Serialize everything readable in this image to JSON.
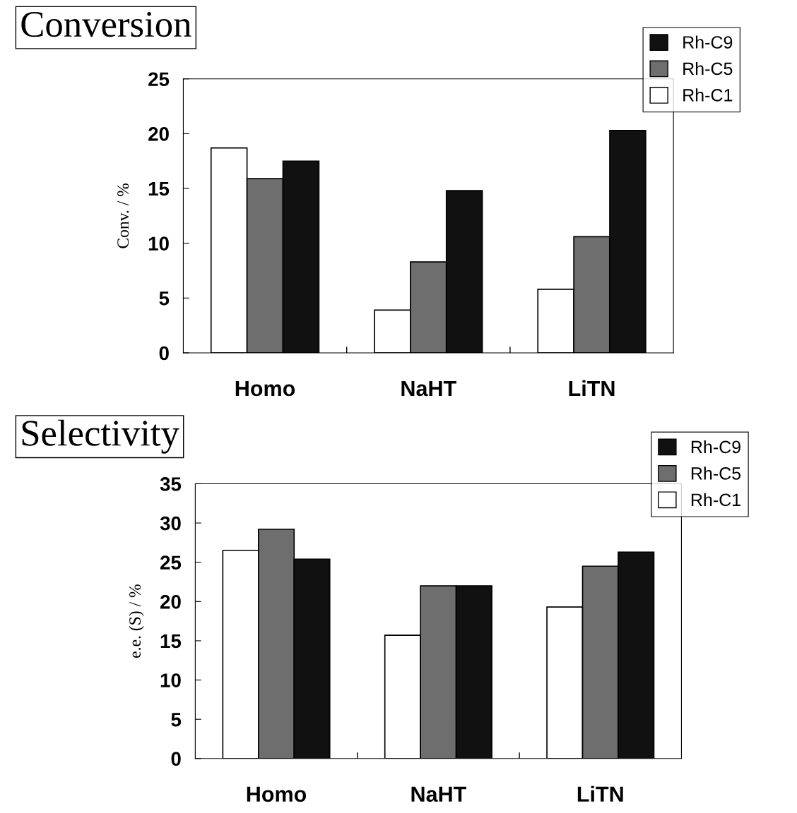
{
  "chart_data": [
    {
      "type": "bar",
      "title": "Conversion",
      "ylabel": "Conv. / %",
      "categories": [
        "Homo",
        "NaHT",
        "LiTN"
      ],
      "series": [
        {
          "name": "Rh-C1",
          "color": "#ffffff",
          "values": [
            18.7,
            3.9,
            5.8
          ]
        },
        {
          "name": "Rh-C5",
          "color": "#6e6e6e",
          "values": [
            15.9,
            8.3,
            10.6
          ]
        },
        {
          "name": "Rh-C9",
          "color": "#111111",
          "values": [
            17.5,
            14.8,
            20.3
          ]
        }
      ],
      "ylim": [
        0,
        25
      ],
      "yticks": [
        0,
        5,
        10,
        15,
        20,
        25
      ],
      "grid": false,
      "legend": "top right"
    },
    {
      "type": "bar",
      "title": "Selectivity",
      "ylabel": "e.e. (S) / %",
      "categories": [
        "Homo",
        "NaHT",
        "LiTN"
      ],
      "series": [
        {
          "name": "Rh-C1",
          "color": "#ffffff",
          "values": [
            26.5,
            15.7,
            19.3
          ]
        },
        {
          "name": "Rh-C5",
          "color": "#6e6e6e",
          "values": [
            29.2,
            22.0,
            24.5
          ]
        },
        {
          "name": "Rh-C9",
          "color": "#111111",
          "values": [
            25.4,
            22.0,
            26.3
          ]
        }
      ],
      "ylim": [
        0,
        35
      ],
      "yticks": [
        0,
        5,
        10,
        15,
        20,
        25,
        30,
        35
      ],
      "grid": false,
      "legend": "top right"
    }
  ]
}
